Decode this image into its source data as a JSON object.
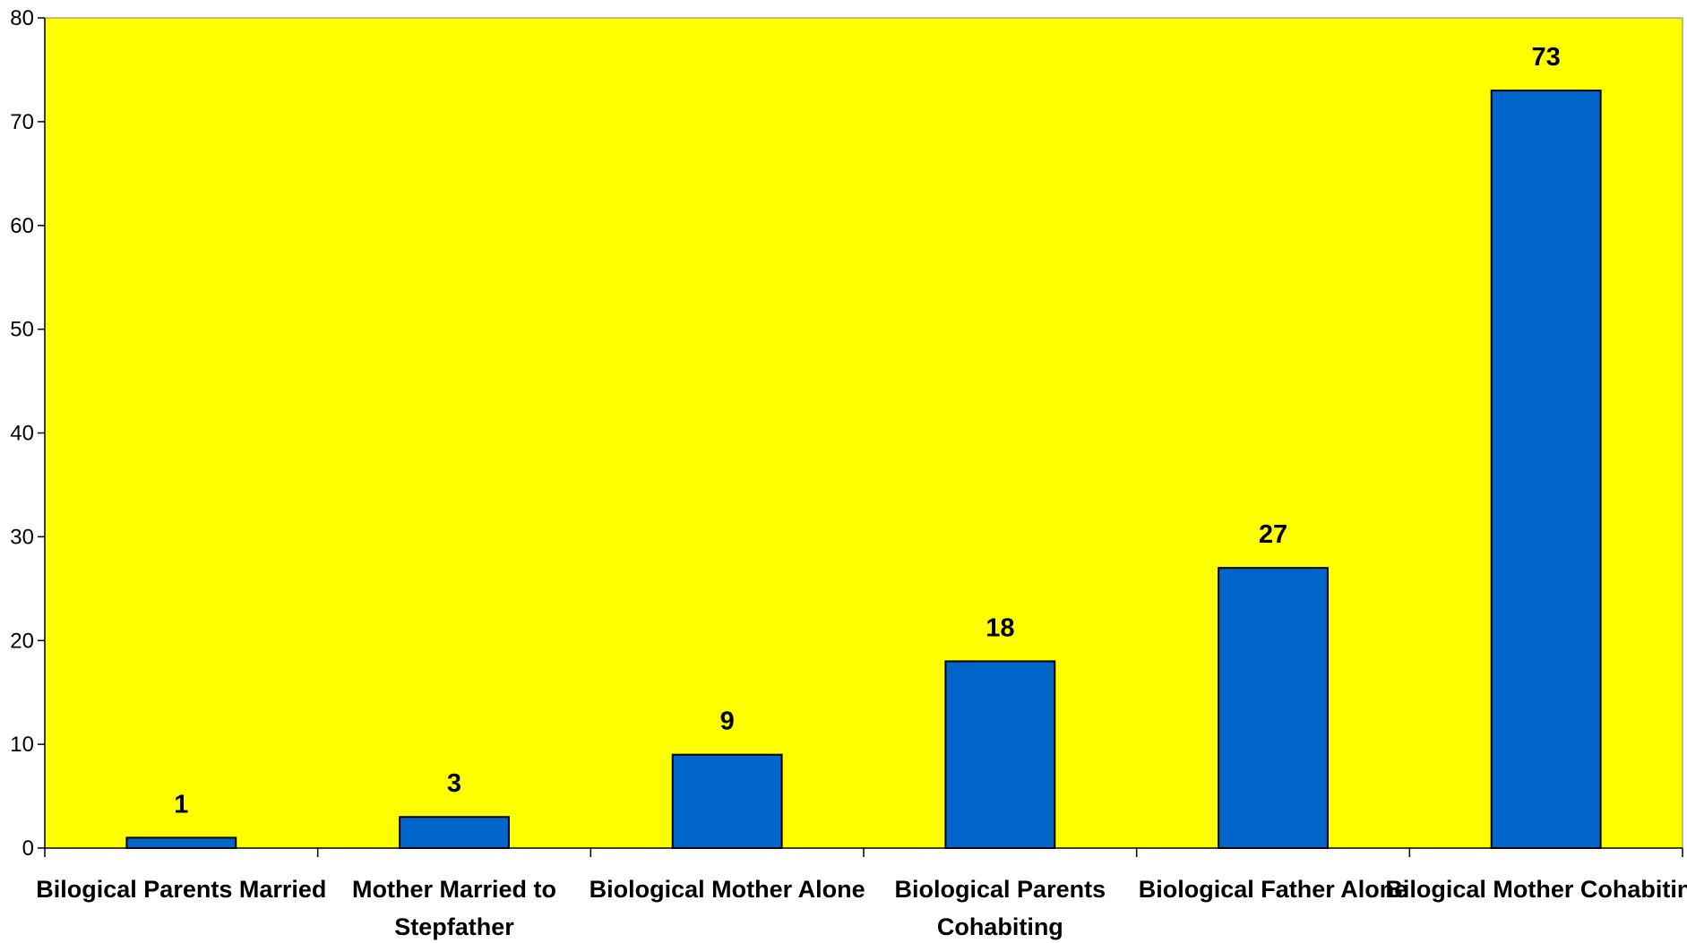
{
  "chart_data": {
    "type": "bar",
    "categories": [
      [
        "Bilogical Parents Married"
      ],
      [
        "Mother Married to",
        "Stepfather"
      ],
      [
        "Biological Mother Alone"
      ],
      [
        "Biological Parents",
        "Cohabiting"
      ],
      [
        "Biological Father Alone"
      ],
      [
        "Bilogical Mother Cohabiting"
      ]
    ],
    "values": [
      1,
      3,
      9,
      18,
      27,
      73
    ],
    "data_labels": [
      "1",
      "3",
      "9",
      "18",
      "27",
      "73"
    ],
    "ylim": [
      0,
      80
    ],
    "yticks": [
      0,
      10,
      20,
      30,
      40,
      50,
      60,
      70,
      80
    ],
    "title": "",
    "xlabel": "",
    "ylabel": "",
    "grid": false,
    "legend": "none",
    "colors": {
      "plot_background": "#ffff00",
      "bar_fill": "#0066cc",
      "bar_stroke": "#000000",
      "axis": "#000000"
    }
  }
}
